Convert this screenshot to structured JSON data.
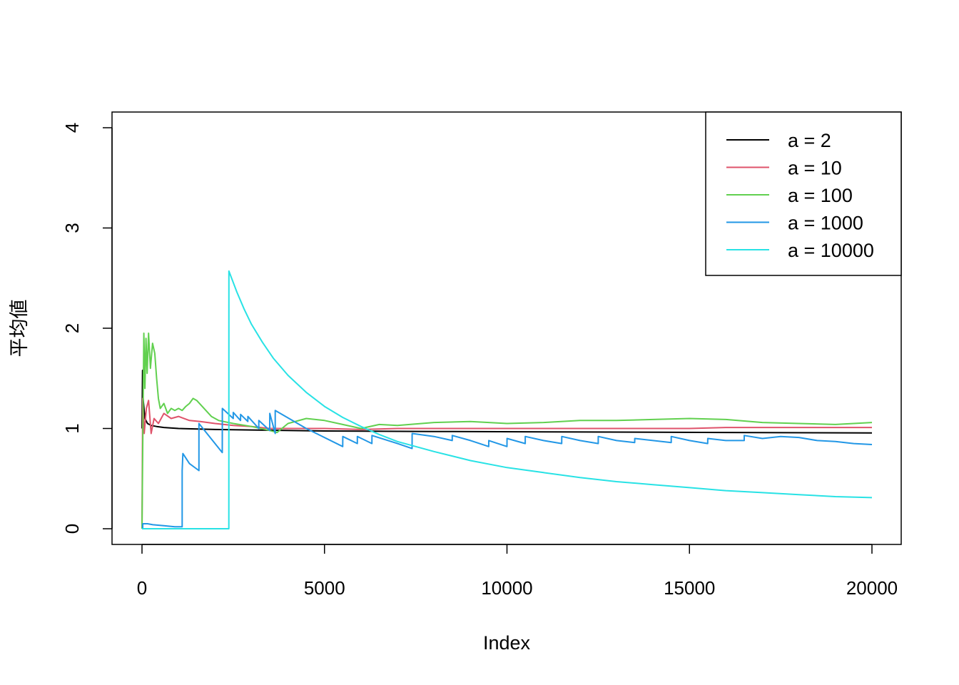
{
  "chart_data": {
    "type": "line",
    "xlabel": "Index",
    "ylabel": "平均値",
    "xlim": [
      0,
      20000
    ],
    "ylim": [
      0,
      4
    ],
    "xticks": [
      0,
      5000,
      10000,
      15000,
      20000
    ],
    "yticks": [
      0,
      1,
      2,
      3,
      4
    ],
    "grid": false,
    "legend_position": "top-right",
    "series": [
      {
        "name": "a = 2",
        "color": "#000000",
        "points": [
          [
            0,
            1.0
          ],
          [
            15,
            1.58
          ],
          [
            30,
            1.3
          ],
          [
            80,
            1.1
          ],
          [
            150,
            1.05
          ],
          [
            250,
            1.03
          ],
          [
            400,
            1.02
          ],
          [
            600,
            1.01
          ],
          [
            1000,
            1.0
          ],
          [
            2000,
            0.99
          ],
          [
            3000,
            0.985
          ],
          [
            5000,
            0.975
          ],
          [
            8000,
            0.97
          ],
          [
            12000,
            0.965
          ],
          [
            16000,
            0.96
          ],
          [
            20000,
            0.955
          ]
        ]
      },
      {
        "name": "a = 10",
        "color": "#DF536B",
        "points": [
          [
            0,
            0.0
          ],
          [
            20,
            1.3
          ],
          [
            60,
            0.95
          ],
          [
            120,
            1.2
          ],
          [
            180,
            1.28
          ],
          [
            250,
            0.95
          ],
          [
            330,
            1.1
          ],
          [
            450,
            1.05
          ],
          [
            600,
            1.15
          ],
          [
            800,
            1.1
          ],
          [
            1000,
            1.12
          ],
          [
            1300,
            1.08
          ],
          [
            1600,
            1.07
          ],
          [
            2000,
            1.05
          ],
          [
            2500,
            1.03
          ],
          [
            3000,
            1.02
          ],
          [
            3500,
            1.0
          ],
          [
            4000,
            1.0
          ],
          [
            5000,
            1.0
          ],
          [
            6000,
            0.99
          ],
          [
            7000,
            1.0
          ],
          [
            9000,
            1.0
          ],
          [
            12000,
            1.0
          ],
          [
            15000,
            1.0
          ],
          [
            16000,
            1.01
          ],
          [
            18000,
            1.01
          ],
          [
            20000,
            1.01
          ]
        ]
      },
      {
        "name": "a = 100",
        "color": "#61D04F",
        "points": [
          [
            0,
            0.0
          ],
          [
            20,
            0.8
          ],
          [
            50,
            1.95
          ],
          [
            80,
            1.4
          ],
          [
            110,
            1.9
          ],
          [
            140,
            1.55
          ],
          [
            180,
            1.95
          ],
          [
            230,
            1.6
          ],
          [
            290,
            1.85
          ],
          [
            350,
            1.75
          ],
          [
            400,
            1.5
          ],
          [
            450,
            1.3
          ],
          [
            500,
            1.2
          ],
          [
            600,
            1.25
          ],
          [
            700,
            1.15
          ],
          [
            800,
            1.2
          ],
          [
            900,
            1.18
          ],
          [
            1000,
            1.2
          ],
          [
            1100,
            1.18
          ],
          [
            1200,
            1.22
          ],
          [
            1300,
            1.25
          ],
          [
            1400,
            1.3
          ],
          [
            1500,
            1.28
          ],
          [
            1700,
            1.2
          ],
          [
            1900,
            1.12
          ],
          [
            2100,
            1.08
          ],
          [
            2500,
            1.05
          ],
          [
            3000,
            1.02
          ],
          [
            3500,
            0.98
          ],
          [
            3700,
            0.96
          ],
          [
            4000,
            1.05
          ],
          [
            4500,
            1.1
          ],
          [
            5000,
            1.08
          ],
          [
            5500,
            1.04
          ],
          [
            6000,
            1.0
          ],
          [
            6500,
            1.04
          ],
          [
            7000,
            1.03
          ],
          [
            8000,
            1.06
          ],
          [
            9000,
            1.07
          ],
          [
            10000,
            1.05
          ],
          [
            11000,
            1.06
          ],
          [
            12000,
            1.08
          ],
          [
            13000,
            1.08
          ],
          [
            14000,
            1.09
          ],
          [
            15000,
            1.1
          ],
          [
            16000,
            1.09
          ],
          [
            17000,
            1.06
          ],
          [
            18000,
            1.05
          ],
          [
            19000,
            1.04
          ],
          [
            20000,
            1.06
          ]
        ]
      },
      {
        "name": "a = 1000",
        "color": "#2297E6",
        "points": [
          [
            0,
            0.0
          ],
          [
            20,
            0.0
          ],
          [
            21,
            0.05
          ],
          [
            150,
            0.05
          ],
          [
            300,
            0.04
          ],
          [
            600,
            0.03
          ],
          [
            900,
            0.02
          ],
          [
            1100,
            0.02
          ],
          [
            1101,
            0.58
          ],
          [
            1120,
            0.75
          ],
          [
            1300,
            0.65
          ],
          [
            1560,
            0.58
          ],
          [
            1561,
            1.05
          ],
          [
            2200,
            0.76
          ],
          [
            2201,
            1.2
          ],
          [
            2500,
            1.1
          ],
          [
            2501,
            1.16
          ],
          [
            2700,
            1.08
          ],
          [
            2701,
            1.14
          ],
          [
            2900,
            1.07
          ],
          [
            2901,
            1.12
          ],
          [
            3200,
            1.0
          ],
          [
            3201,
            1.08
          ],
          [
            3500,
            0.98
          ],
          [
            3501,
            1.15
          ],
          [
            3650,
            0.95
          ],
          [
            3651,
            1.18
          ],
          [
            4500,
            1.0
          ],
          [
            5500,
            0.82
          ],
          [
            5501,
            0.92
          ],
          [
            5900,
            0.85
          ],
          [
            5901,
            0.92
          ],
          [
            6300,
            0.85
          ],
          [
            6301,
            0.93
          ],
          [
            7000,
            0.85
          ],
          [
            7400,
            0.8
          ],
          [
            7401,
            0.95
          ],
          [
            8000,
            0.92
          ],
          [
            8500,
            0.88
          ],
          [
            8501,
            0.93
          ],
          [
            9000,
            0.88
          ],
          [
            9500,
            0.82
          ],
          [
            9501,
            0.88
          ],
          [
            10000,
            0.82
          ],
          [
            10001,
            0.9
          ],
          [
            10500,
            0.85
          ],
          [
            10501,
            0.92
          ],
          [
            11000,
            0.88
          ],
          [
            11500,
            0.85
          ],
          [
            11501,
            0.92
          ],
          [
            12000,
            0.88
          ],
          [
            12500,
            0.85
          ],
          [
            12501,
            0.92
          ],
          [
            13000,
            0.88
          ],
          [
            13500,
            0.86
          ],
          [
            13501,
            0.9
          ],
          [
            14000,
            0.88
          ],
          [
            14500,
            0.86
          ],
          [
            14501,
            0.92
          ],
          [
            15000,
            0.88
          ],
          [
            15500,
            0.85
          ],
          [
            15501,
            0.9
          ],
          [
            16000,
            0.88
          ],
          [
            16500,
            0.88
          ],
          [
            16501,
            0.93
          ],
          [
            17000,
            0.9
          ],
          [
            17500,
            0.92
          ],
          [
            18000,
            0.91
          ],
          [
            18500,
            0.88
          ],
          [
            19000,
            0.87
          ],
          [
            19500,
            0.85
          ],
          [
            20000,
            0.84
          ]
        ]
      },
      {
        "name": "a = 10000",
        "color": "#28E2E5",
        "points": [
          [
            0,
            0.0
          ],
          [
            2380,
            0.0
          ],
          [
            2381,
            2.57
          ],
          [
            2600,
            2.36
          ],
          [
            2800,
            2.19
          ],
          [
            3000,
            2.04
          ],
          [
            3300,
            1.86
          ],
          [
            3600,
            1.7
          ],
          [
            4000,
            1.53
          ],
          [
            4500,
            1.36
          ],
          [
            5000,
            1.22
          ],
          [
            5500,
            1.11
          ],
          [
            6000,
            1.02
          ],
          [
            6500,
            0.94
          ],
          [
            7000,
            0.87
          ],
          [
            7500,
            0.82
          ],
          [
            8000,
            0.77
          ],
          [
            9000,
            0.68
          ],
          [
            10000,
            0.61
          ],
          [
            11000,
            0.56
          ],
          [
            12000,
            0.51
          ],
          [
            13000,
            0.47
          ],
          [
            14000,
            0.44
          ],
          [
            15000,
            0.41
          ],
          [
            16000,
            0.38
          ],
          [
            17000,
            0.36
          ],
          [
            18000,
            0.34
          ],
          [
            19000,
            0.32
          ],
          [
            20000,
            0.31
          ]
        ]
      }
    ]
  }
}
